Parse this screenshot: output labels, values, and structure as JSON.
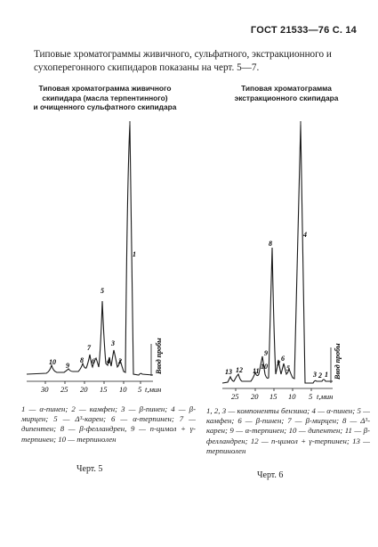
{
  "header": "ГОСТ 21533—76 С. 14",
  "intro": "Типовые хроматограммы живичного, сульфатного, экстракционного и сухоперегонного скипидаров показаны на черт. 5—7.",
  "left": {
    "caption": [
      "Типовая хроматограмма живичного",
      "скипидара (масла терпентинного)",
      "и очищенного сульфатного скипидара"
    ],
    "peak_labels": [
      "10",
      "9",
      "8",
      "7",
      "6",
      "5",
      "4",
      "3",
      "2",
      "1"
    ],
    "axis_ticks": [
      "30",
      "25",
      "20",
      "15",
      "10",
      "5"
    ],
    "axis_unit": "t,мин",
    "injection_label": "Ввод пробы",
    "legend": "1 — α-пинен; 2 — камфен; 3 — β-пинен; 4 — β-мирцен; 5 — Δ³-карен; 6 — α-терпинен; 7 — дипентен; 8 — β-фелландрен, 9 — n-цимол + γ-терпинен; 10 — терпинолен",
    "figure_label": "Черт. 5"
  },
  "right": {
    "caption": [
      "Типовая хроматограмма",
      "экстракционного скипидара"
    ],
    "peak_labels": [
      "13",
      "12",
      "11",
      "10",
      "9",
      "8",
      "7",
      "6",
      "5",
      "4",
      "3",
      "2",
      "1"
    ],
    "axis_ticks": [
      "25",
      "20",
      "15",
      "10",
      "5"
    ],
    "axis_unit": "t,мин",
    "injection_label": "Ввод пробы",
    "legend": "1, 2, 3 — компоненты бензина; 4 — α-пинен; 5 — камфен; 6 — β-пинен; 7 — β-мирцен; 8 — Δ³-карен; 9 — α-терпинен; 10 — дипентен; 11 — β-фелландрен; 12 — n-цимол + γ-терпинен; 13 — терпинолен",
    "figure_label": "Черт. 6"
  }
}
